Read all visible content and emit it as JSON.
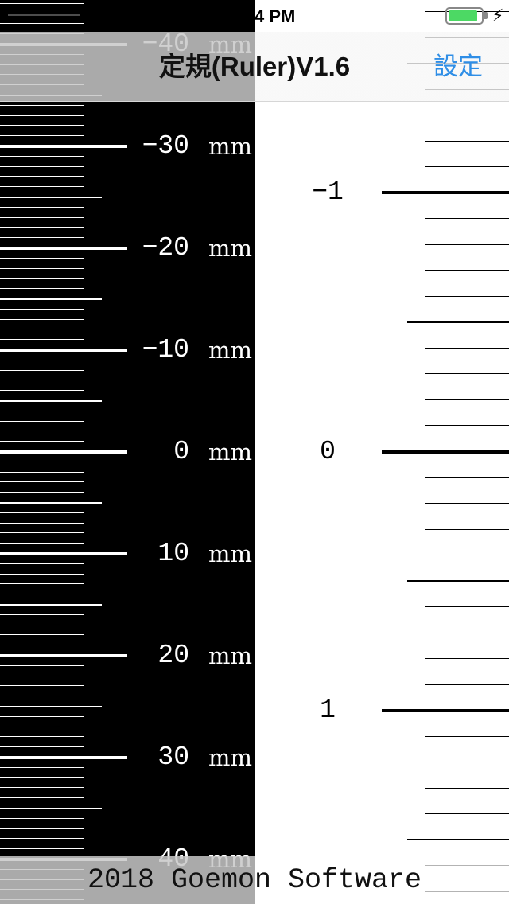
{
  "status_bar": {
    "time": "4 PM",
    "battery_level": 0.9,
    "battery_color": "#4cd964",
    "charge_icon": "lightning-bolt-icon"
  },
  "nav_bar": {
    "title": "定規(Ruler)V1.6",
    "settings_label": "設定",
    "accent_color": "#2f8ee6"
  },
  "mm_ruler": {
    "unit": "mm",
    "labels": [
      "-40",
      "-30",
      "-20",
      "-10",
      "0",
      "10",
      "20",
      "30",
      "40"
    ],
    "background": "#000000",
    "tick_color": "#ffffff"
  },
  "inch_ruler": {
    "labels": [
      "-1",
      "0",
      "1"
    ],
    "background": "#ffffff",
    "tick_color": "#000000"
  },
  "footer": {
    "text": "2018 Goemon Software"
  }
}
